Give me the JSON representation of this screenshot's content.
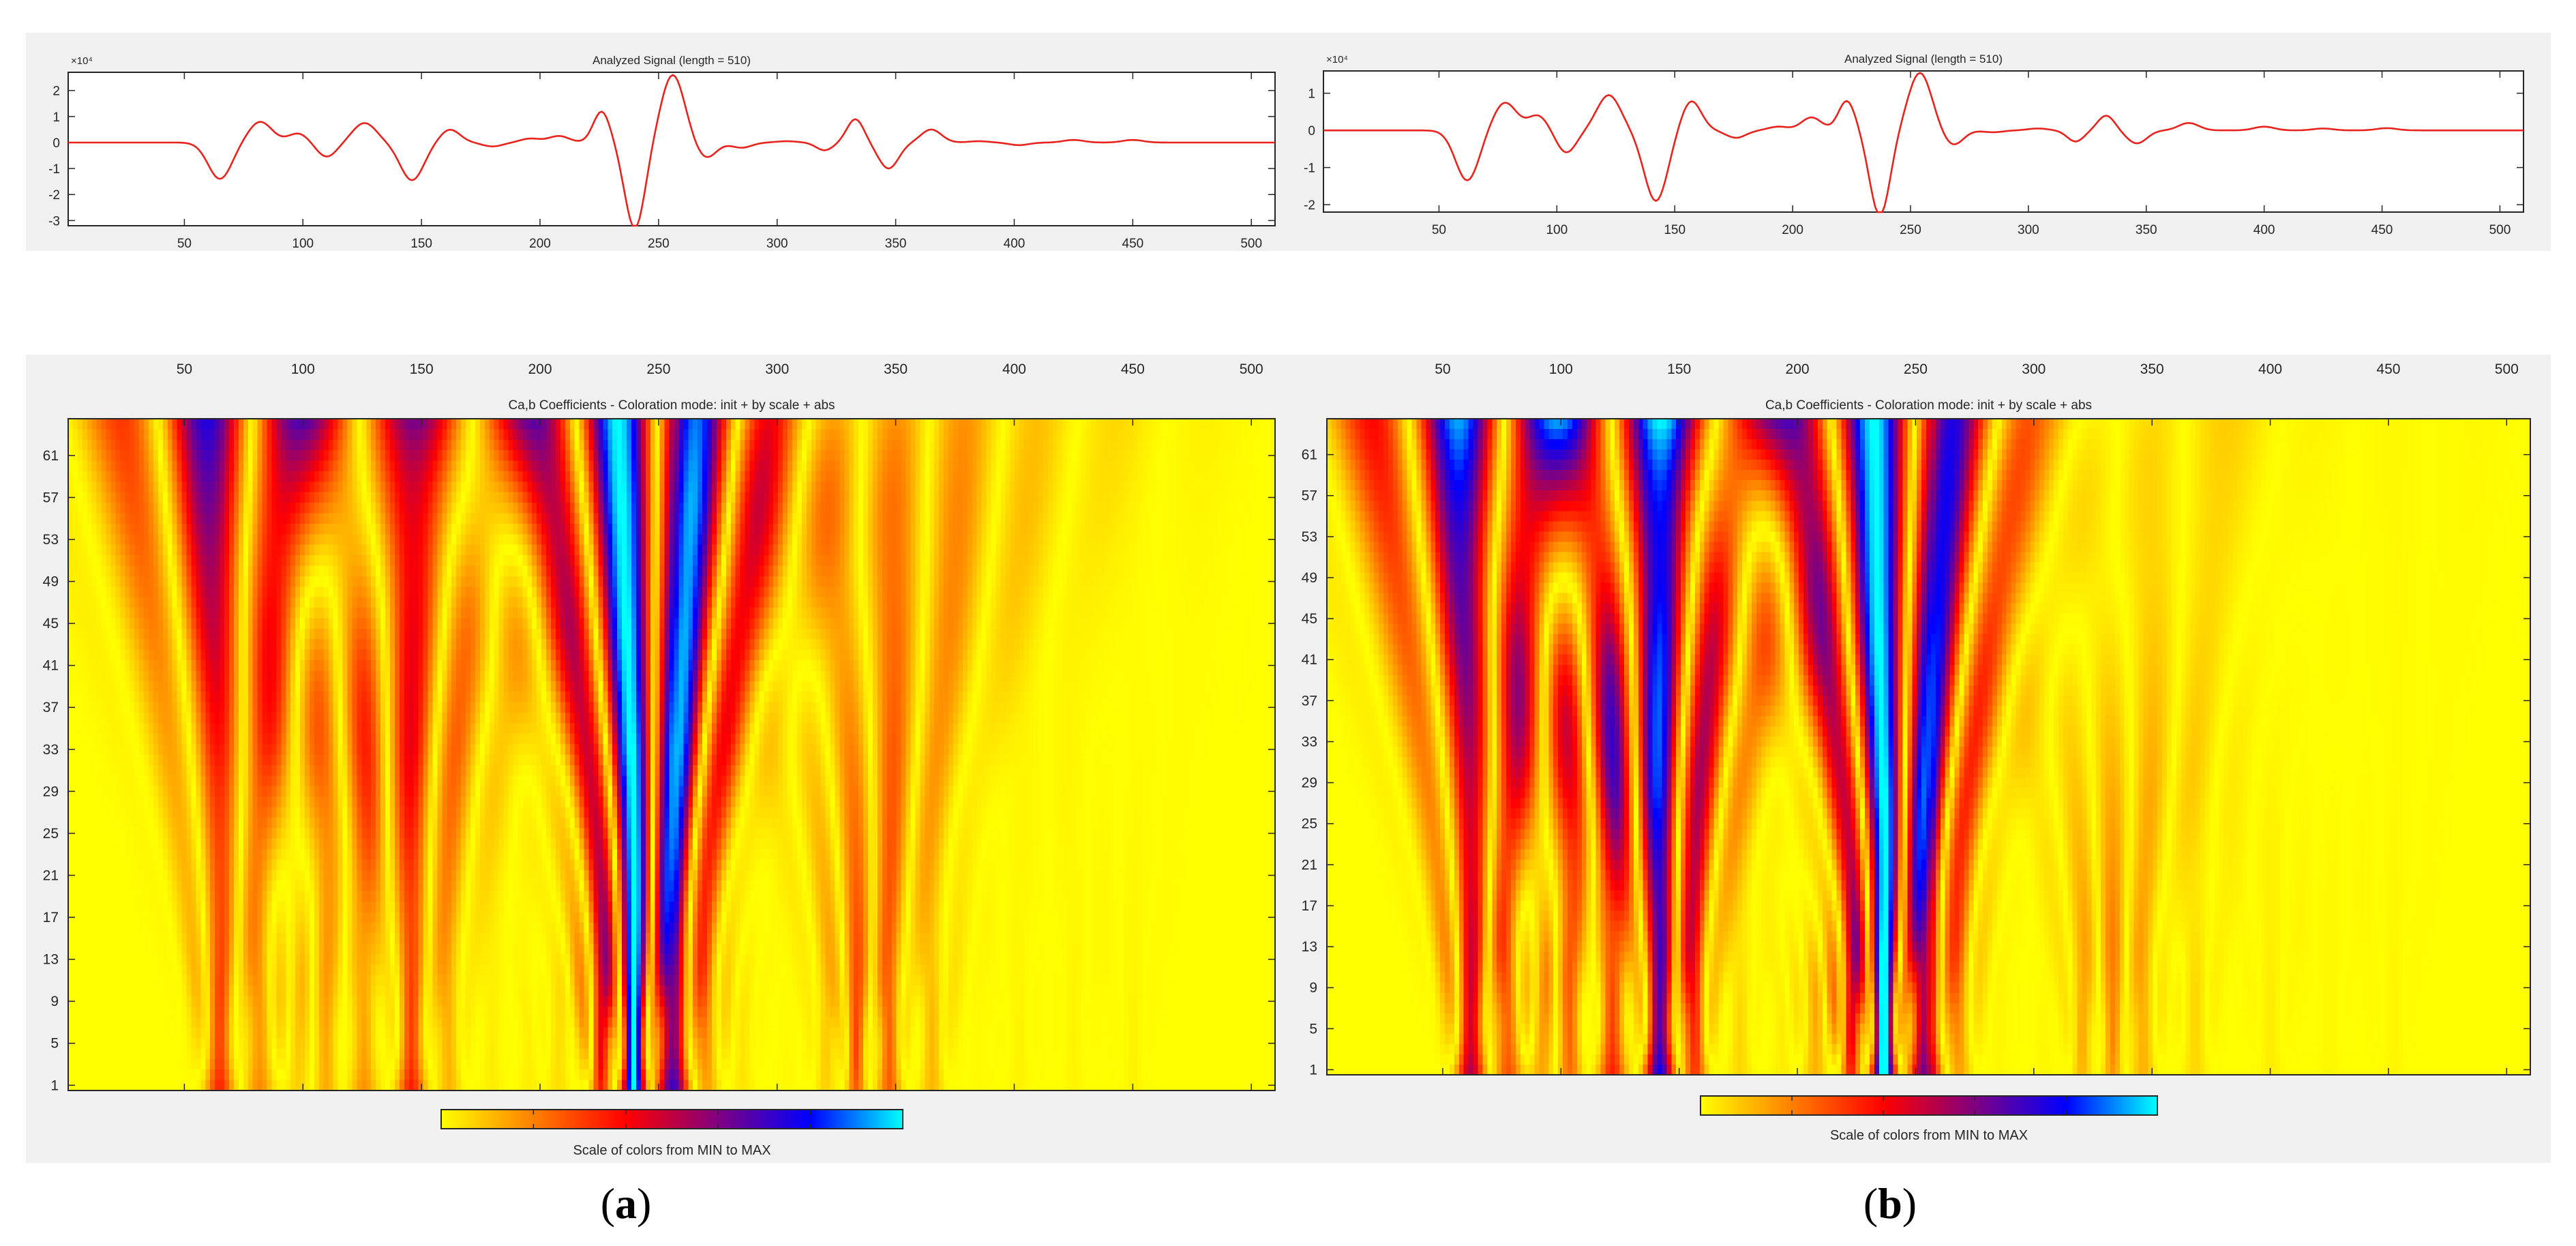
{
  "panels": [
    {
      "id": "a",
      "label_open": "(",
      "label_letter": "a",
      "label_close": ")",
      "signal": {
        "title": "Analyzed Signal (length = 510)",
        "exponent_label": "×10⁴",
        "ylim": [
          -3.2,
          2.7
        ],
        "yticks": [
          -3,
          -2,
          -1,
          0,
          1,
          2
        ],
        "xlim": [
          1,
          510
        ],
        "xticks": [
          50,
          100,
          150,
          200,
          250,
          300,
          350,
          400,
          450,
          500
        ],
        "line_color": "#e8231d",
        "events": [
          [
            65,
            -1.4,
            7
          ],
          [
            82,
            0.8,
            7
          ],
          [
            98,
            0.35,
            6
          ],
          [
            110,
            -0.55,
            6
          ],
          [
            126,
            0.75,
            7
          ],
          [
            146,
            -1.45,
            7
          ],
          [
            162,
            0.5,
            6
          ],
          [
            180,
            -0.15,
            6
          ],
          [
            196,
            0.15,
            6
          ],
          [
            208,
            0.25,
            6
          ],
          [
            226,
            1.2,
            5
          ],
          [
            240,
            -3.3,
            6
          ],
          [
            256,
            2.6,
            7
          ],
          [
            270,
            -0.6,
            6
          ],
          [
            285,
            -0.2,
            6
          ],
          [
            304,
            0.05,
            6
          ],
          [
            320,
            -0.3,
            5
          ],
          [
            333,
            0.9,
            5
          ],
          [
            347,
            -1.0,
            6
          ],
          [
            365,
            0.5,
            6
          ],
          [
            385,
            0.05,
            6
          ],
          [
            402,
            -0.1,
            6
          ],
          [
            425,
            0.1,
            6
          ],
          [
            450,
            0.1,
            6
          ]
        ]
      },
      "scalogram": {
        "title": "Ca,b Coefficients - Coloration mode: init + by scale + abs",
        "xlim": [
          1,
          510
        ],
        "xticks": [
          50,
          100,
          150,
          200,
          250,
          300,
          350,
          400,
          450,
          500
        ],
        "scale_range": [
          1,
          64
        ],
        "yticks": [
          1,
          5,
          9,
          13,
          17,
          21,
          25,
          29,
          33,
          37,
          41,
          45,
          49,
          53,
          57,
          61
        ],
        "colorbar_label": "Scale of colors from MIN to MAX",
        "colormap": [
          "#ffff00",
          "#ff7f00",
          "#ff0000",
          "#800080",
          "#0000ff",
          "#00ffff"
        ]
      }
    },
    {
      "id": "b",
      "label_open": "(",
      "label_letter": "b",
      "label_close": ")",
      "signal": {
        "title": "Analyzed Signal (length = 510)",
        "exponent_label": "×10⁴",
        "ylim": [
          -2.2,
          1.6
        ],
        "yticks": [
          -2,
          -1,
          0,
          1
        ],
        "xlim": [
          1,
          510
        ],
        "xticks": [
          50,
          100,
          150,
          200,
          250,
          300,
          350,
          400,
          450,
          500
        ],
        "line_color": "#e8231d",
        "events": [
          [
            62,
            -1.35,
            7
          ],
          [
            78,
            0.75,
            7
          ],
          [
            92,
            0.4,
            6
          ],
          [
            104,
            -0.6,
            6
          ],
          [
            122,
            0.95,
            7
          ],
          [
            142,
            -1.9,
            7
          ],
          [
            157,
            0.8,
            6
          ],
          [
            176,
            -0.2,
            6
          ],
          [
            194,
            0.1,
            6
          ],
          [
            208,
            0.35,
            6
          ],
          [
            223,
            0.8,
            5
          ],
          [
            237,
            -2.3,
            6
          ],
          [
            254,
            1.55,
            7
          ],
          [
            268,
            -0.4,
            6
          ],
          [
            285,
            -0.05,
            6
          ],
          [
            304,
            0.05,
            6
          ],
          [
            320,
            -0.3,
            5
          ],
          [
            333,
            0.4,
            5
          ],
          [
            346,
            -0.35,
            6
          ],
          [
            368,
            0.2,
            6
          ],
          [
            400,
            0.1,
            6
          ],
          [
            425,
            0.05,
            6
          ],
          [
            452,
            0.06,
            6
          ]
        ]
      },
      "scalogram": {
        "title": "Ca,b Coefficients - Coloration mode: init + by scale + abs",
        "xlim": [
          1,
          510
        ],
        "xticks": [
          50,
          100,
          150,
          200,
          250,
          300,
          350,
          400,
          450,
          500
        ],
        "scale_range": [
          1,
          64
        ],
        "yticks": [
          1,
          5,
          9,
          13,
          17,
          21,
          25,
          29,
          33,
          37,
          41,
          45,
          49,
          53,
          57,
          61
        ],
        "colorbar_label": "Scale of colors from MIN to MAX",
        "colormap": [
          "#ffff00",
          "#ff7f00",
          "#ff0000",
          "#800080",
          "#0000ff",
          "#00ffff"
        ]
      }
    }
  ],
  "chart_data": [
    {
      "type": "line",
      "panel": "a",
      "title": "Analyzed Signal (length = 510)",
      "xlabel": "",
      "ylabel": "×10⁴",
      "xlim": [
        1,
        510
      ],
      "ylim": [
        -3.2,
        2.7
      ],
      "x": [
        1,
        50,
        65,
        82,
        98,
        110,
        126,
        146,
        162,
        180,
        196,
        208,
        226,
        240,
        256,
        270,
        285,
        304,
        320,
        333,
        347,
        365,
        385,
        402,
        425,
        450,
        510
      ],
      "y": [
        0,
        0.1,
        -1.4,
        0.8,
        0.35,
        -0.55,
        0.75,
        -1.45,
        0.5,
        -0.15,
        0.15,
        0.25,
        1.2,
        -3.3,
        2.6,
        -0.6,
        -0.2,
        0.05,
        -0.3,
        0.9,
        -1.0,
        0.5,
        0.05,
        -0.1,
        0.1,
        0.1,
        0
      ]
    },
    {
      "type": "heatmap",
      "panel": "a",
      "title": "Ca,b Coefficients - Coloration mode: init + by scale + abs",
      "xlabel": "",
      "ylabel": "",
      "xlim": [
        1,
        510
      ],
      "ylim": [
        1,
        64
      ],
      "colorbar": "Scale of colors from MIN to MAX"
    },
    {
      "type": "line",
      "panel": "b",
      "title": "Analyzed Signal (length = 510)",
      "xlabel": "",
      "ylabel": "×10⁴",
      "xlim": [
        1,
        510
      ],
      "ylim": [
        -2.2,
        1.6
      ],
      "x": [
        1,
        50,
        62,
        78,
        92,
        104,
        122,
        142,
        157,
        176,
        194,
        208,
        223,
        237,
        254,
        268,
        285,
        304,
        320,
        333,
        346,
        368,
        400,
        425,
        452,
        510
      ],
      "y": [
        0,
        0.1,
        -1.35,
        0.75,
        0.4,
        -0.6,
        0.95,
        -1.9,
        0.8,
        -0.2,
        0.1,
        0.35,
        0.8,
        -2.3,
        1.55,
        -0.4,
        -0.05,
        0.05,
        -0.3,
        0.4,
        -0.35,
        0.2,
        0.1,
        0.05,
        0.06,
        0
      ]
    },
    {
      "type": "heatmap",
      "panel": "b",
      "title": "Ca,b Coefficients - Coloration mode: init + by scale + abs",
      "xlabel": "",
      "ylabel": "",
      "xlim": [
        1,
        510
      ],
      "ylim": [
        1,
        64
      ],
      "colorbar": "Scale of colors from MIN to MAX"
    }
  ]
}
